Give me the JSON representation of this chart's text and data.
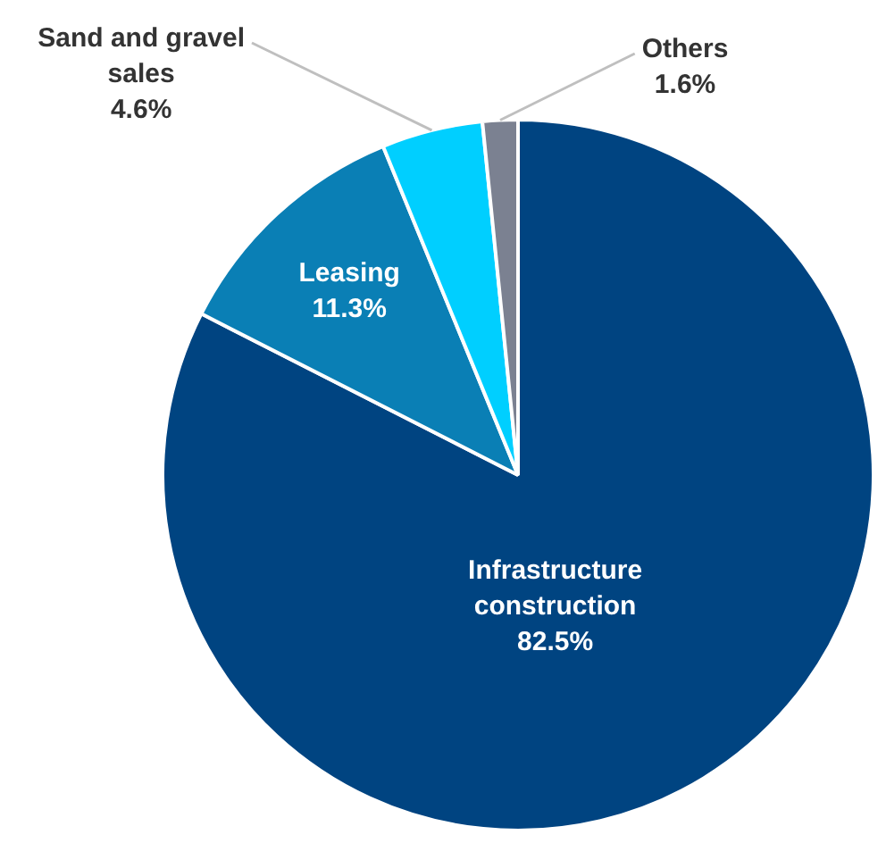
{
  "chart_data": {
    "type": "pie",
    "categories": [
      "Infrastructure construction",
      "Leasing",
      "Sand and gravel sales",
      "Others"
    ],
    "values": [
      82.5,
      11.3,
      4.6,
      1.6
    ],
    "value_labels": [
      "82.5%",
      "11.3%",
      "4.6%",
      "1.6%"
    ],
    "colors": [
      "#004481",
      "#0a7fb5",
      "#00cfff",
      "#7b8191"
    ],
    "legend": false
  }
}
